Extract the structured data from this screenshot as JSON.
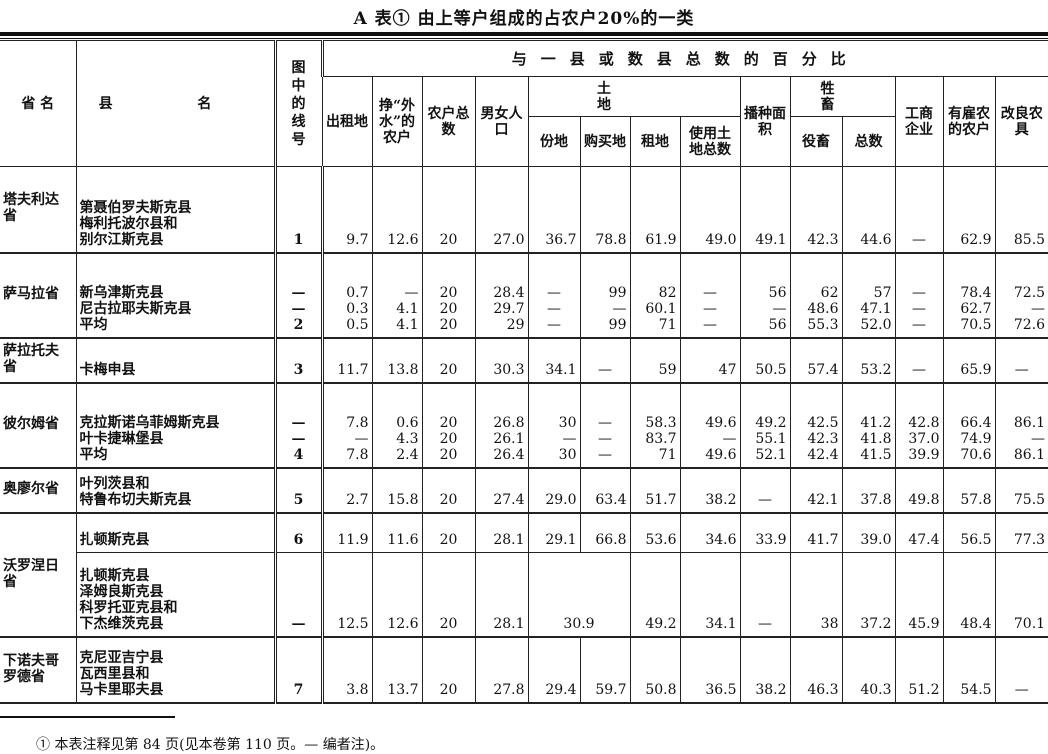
{
  "title": "A 表① 由上等户组成的占农户20%的一类",
  "header": {
    "province": "省 名",
    "county": "县 名",
    "line_no": "图中的线号",
    "percent_group": "与一县或数县总数的百分比",
    "land_group": "土 地",
    "livestock_group": "牲 畜",
    "columns": [
      "出租地",
      "挣“外水”的农户",
      "农户总数",
      "男女人口",
      "份地",
      "购买地",
      "租地",
      "使用土地总数",
      "播种面积",
      "役畜",
      "总数",
      "工商企业",
      "有雇农的农户",
      "改良农具"
    ]
  },
  "groups": [
    {
      "province": "塔夫利达省",
      "rows": [
        {
          "county": [
            "第聂伯罗夫斯克县",
            "梅利托波尔县和",
            "别尔江斯克县"
          ],
          "lines": [
            {
              "line": "1",
              "vals": [
                "9.7",
                "12.6",
                "20",
                "27.0",
                "36.7",
                "78.8",
                "61.9",
                "49.0",
                "49.1",
                "42.3",
                "44.6",
                "—",
                "62.9",
                "85.5"
              ]
            }
          ]
        }
      ]
    },
    {
      "province": "萨马拉省",
      "rows": [
        {
          "county": [
            "新乌津斯克县",
            "尼古拉耶夫斯克县",
            "平均"
          ],
          "lines": [
            {
              "line": "—",
              "vals": [
                "0.7",
                "—",
                "20",
                "28.4",
                "—",
                "99",
                "82",
                "—",
                "56",
                "62",
                "57",
                "—",
                "78.4",
                "72.5"
              ]
            },
            {
              "line": "—",
              "vals": [
                "0.3",
                "4.1",
                "20",
                "29.7",
                "—",
                "—",
                "60.1",
                "—",
                "—",
                "48.6",
                "47.1",
                "—",
                "62.7",
                "—"
              ]
            },
            {
              "line": "2",
              "vals": [
                "0.5",
                "4.1",
                "20",
                "29",
                "—",
                "99",
                "71",
                "—",
                "56",
                "55.3",
                "52.0",
                "—",
                "70.5",
                "72.6"
              ]
            }
          ]
        }
      ]
    },
    {
      "province": "萨拉托夫省",
      "rows": [
        {
          "county": [
            "卡梅申县"
          ],
          "lines": [
            {
              "line": "3",
              "vals": [
                "11.7",
                "13.8",
                "20",
                "30.3",
                "34.1",
                "—",
                "59",
                "47",
                "50.5",
                "57.4",
                "53.2",
                "—",
                "65.9",
                "—"
              ]
            }
          ]
        }
      ]
    },
    {
      "province": "彼尔姆省",
      "rows": [
        {
          "county": [
            "克拉斯诺乌菲姆斯克县",
            "叶卡捷琳堡县",
            "平均"
          ],
          "lines": [
            {
              "line": "—",
              "vals": [
                "7.8",
                "0.6",
                "20",
                "26.8",
                "30",
                "—",
                "58.3",
                "49.6",
                "49.2",
                "42.5",
                "41.2",
                "42.8",
                "66.4",
                "86.1"
              ]
            },
            {
              "line": "—",
              "vals": [
                "—",
                "4.3",
                "20",
                "26.1",
                "—",
                "—",
                "83.7",
                "—",
                "55.1",
                "42.3",
                "41.8",
                "37.0",
                "74.9",
                "—"
              ]
            },
            {
              "line": "4",
              "vals": [
                "7.8",
                "2.4",
                "20",
                "26.4",
                "30",
                "—",
                "71",
                "49.6",
                "52.1",
                "42.4",
                "41.5",
                "39.9",
                "70.6",
                "86.1"
              ]
            }
          ]
        }
      ]
    },
    {
      "province": "奥廖尔省",
      "rows": [
        {
          "county": [
            "叶列茨县和",
            "特鲁布切夫斯克县"
          ],
          "lines": [
            {
              "line": "5",
              "vals": [
                "2.7",
                "15.8",
                "20",
                "27.4",
                "29.0",
                "63.4",
                "51.7",
                "38.2",
                "—",
                "42.1",
                "37.8",
                "49.8",
                "57.8",
                "75.5"
              ]
            }
          ]
        }
      ]
    },
    {
      "province": "沃罗涅日省",
      "rows": [
        {
          "county": [
            "扎顿斯克县"
          ],
          "lines": [
            {
              "line": "6",
              "vals": [
                "11.9",
                "11.6",
                "20",
                "28.1",
                "29.1",
                "66.8",
                "53.6",
                "34.6",
                "33.9",
                "41.7",
                "39.0",
                "47.4",
                "56.5",
                "77.3"
              ]
            }
          ]
        },
        {
          "county": [
            "扎顿斯克县",
            "泽姆良斯克县",
            "科罗托亚克县和",
            "下杰维茨克县"
          ],
          "merged_land": true,
          "lines": [
            {
              "line": "—",
              "vals": [
                "12.5",
                "12.6",
                "20",
                "28.1",
                "30.9",
                "49.2",
                "34.1",
                "—",
                "38",
                "37.2",
                "45.9",
                "48.4",
                "70.1"
              ]
            }
          ]
        }
      ]
    },
    {
      "province": "下诺夫哥罗德省",
      "rows": [
        {
          "county": [
            "克尼亚吉宁县",
            "瓦西里县和",
            "马卡里耶夫县"
          ],
          "lines": [
            {
              "line": "7",
              "vals": [
                "3.8",
                "13.7",
                "20",
                "27.8",
                "29.4",
                "59.7",
                "50.8",
                "36.5",
                "38.2",
                "46.3",
                "40.3",
                "51.2",
                "54.5",
                "—"
              ]
            }
          ]
        }
      ]
    }
  ],
  "footnote": "① 本表注释见第 84 页(见本卷第 110 页。— 编者注)。"
}
